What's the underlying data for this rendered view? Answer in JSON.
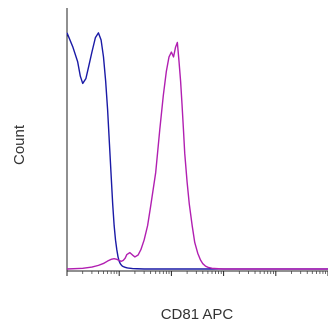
{
  "chart_data": {
    "type": "line",
    "title": "",
    "xlabel": "CD81 APC",
    "ylabel": "Count",
    "x_scale": "log",
    "xlim": [
      1,
      100000
    ],
    "ylim": [
      0,
      100
    ],
    "grid": false,
    "legend": "none",
    "x_decades": [
      1,
      10,
      100,
      1000,
      10000,
      100000
    ],
    "series": [
      {
        "color": "#1a1aa6",
        "x": [
          1,
          1.3,
          1.6,
          1.8,
          2.0,
          2.3,
          2.6,
          3.0,
          3.5,
          4.0,
          4.5,
          5.0,
          5.5,
          6.0,
          6.5,
          7.0,
          7.5,
          8.0,
          8.5,
          9.0,
          9.5,
          10,
          10.5,
          11,
          11.5,
          12,
          13,
          14,
          15,
          18,
          22,
          30,
          50,
          100,
          1000,
          100000
        ],
        "y": [
          98,
          92,
          86,
          80,
          77,
          79,
          84,
          90,
          96,
          98,
          95,
          88,
          78,
          66,
          52,
          39,
          27,
          18,
          12,
          8,
          5,
          3.2,
          2.2,
          1.6,
          1.2,
          1.0,
          0.7,
          0.5,
          0.4,
          0.2,
          0.1,
          0,
          0,
          0,
          0,
          0
        ]
      },
      {
        "color": "#b11fb1",
        "x": [
          1,
          2,
          3,
          4,
          5,
          6,
          7,
          8,
          9,
          10,
          11,
          12,
          13,
          14,
          16,
          18,
          20,
          23,
          26,
          30,
          35,
          40,
          50,
          60,
          70,
          80,
          90,
          100,
          110,
          120,
          130,
          140,
          150,
          160,
          170,
          180,
          200,
          220,
          250,
          280,
          320,
          360,
          400,
          450,
          500,
          600,
          800,
          1000,
          10000,
          100000
        ],
        "y": [
          0,
          0.3,
          0.8,
          1.5,
          2.3,
          3.3,
          4.0,
          4.3,
          4.0,
          3.5,
          3.2,
          3.6,
          4.5,
          6.0,
          6.8,
          5.8,
          5.0,
          5.8,
          8.0,
          12,
          18,
          26,
          40,
          58,
          72,
          82,
          88,
          90,
          88,
          92,
          94,
          86,
          78,
          68,
          58,
          48,
          36,
          27,
          18,
          11,
          6.5,
          3.8,
          2.2,
          1.2,
          0.7,
          0.3,
          0.1,
          0,
          0,
          0
        ]
      }
    ]
  }
}
